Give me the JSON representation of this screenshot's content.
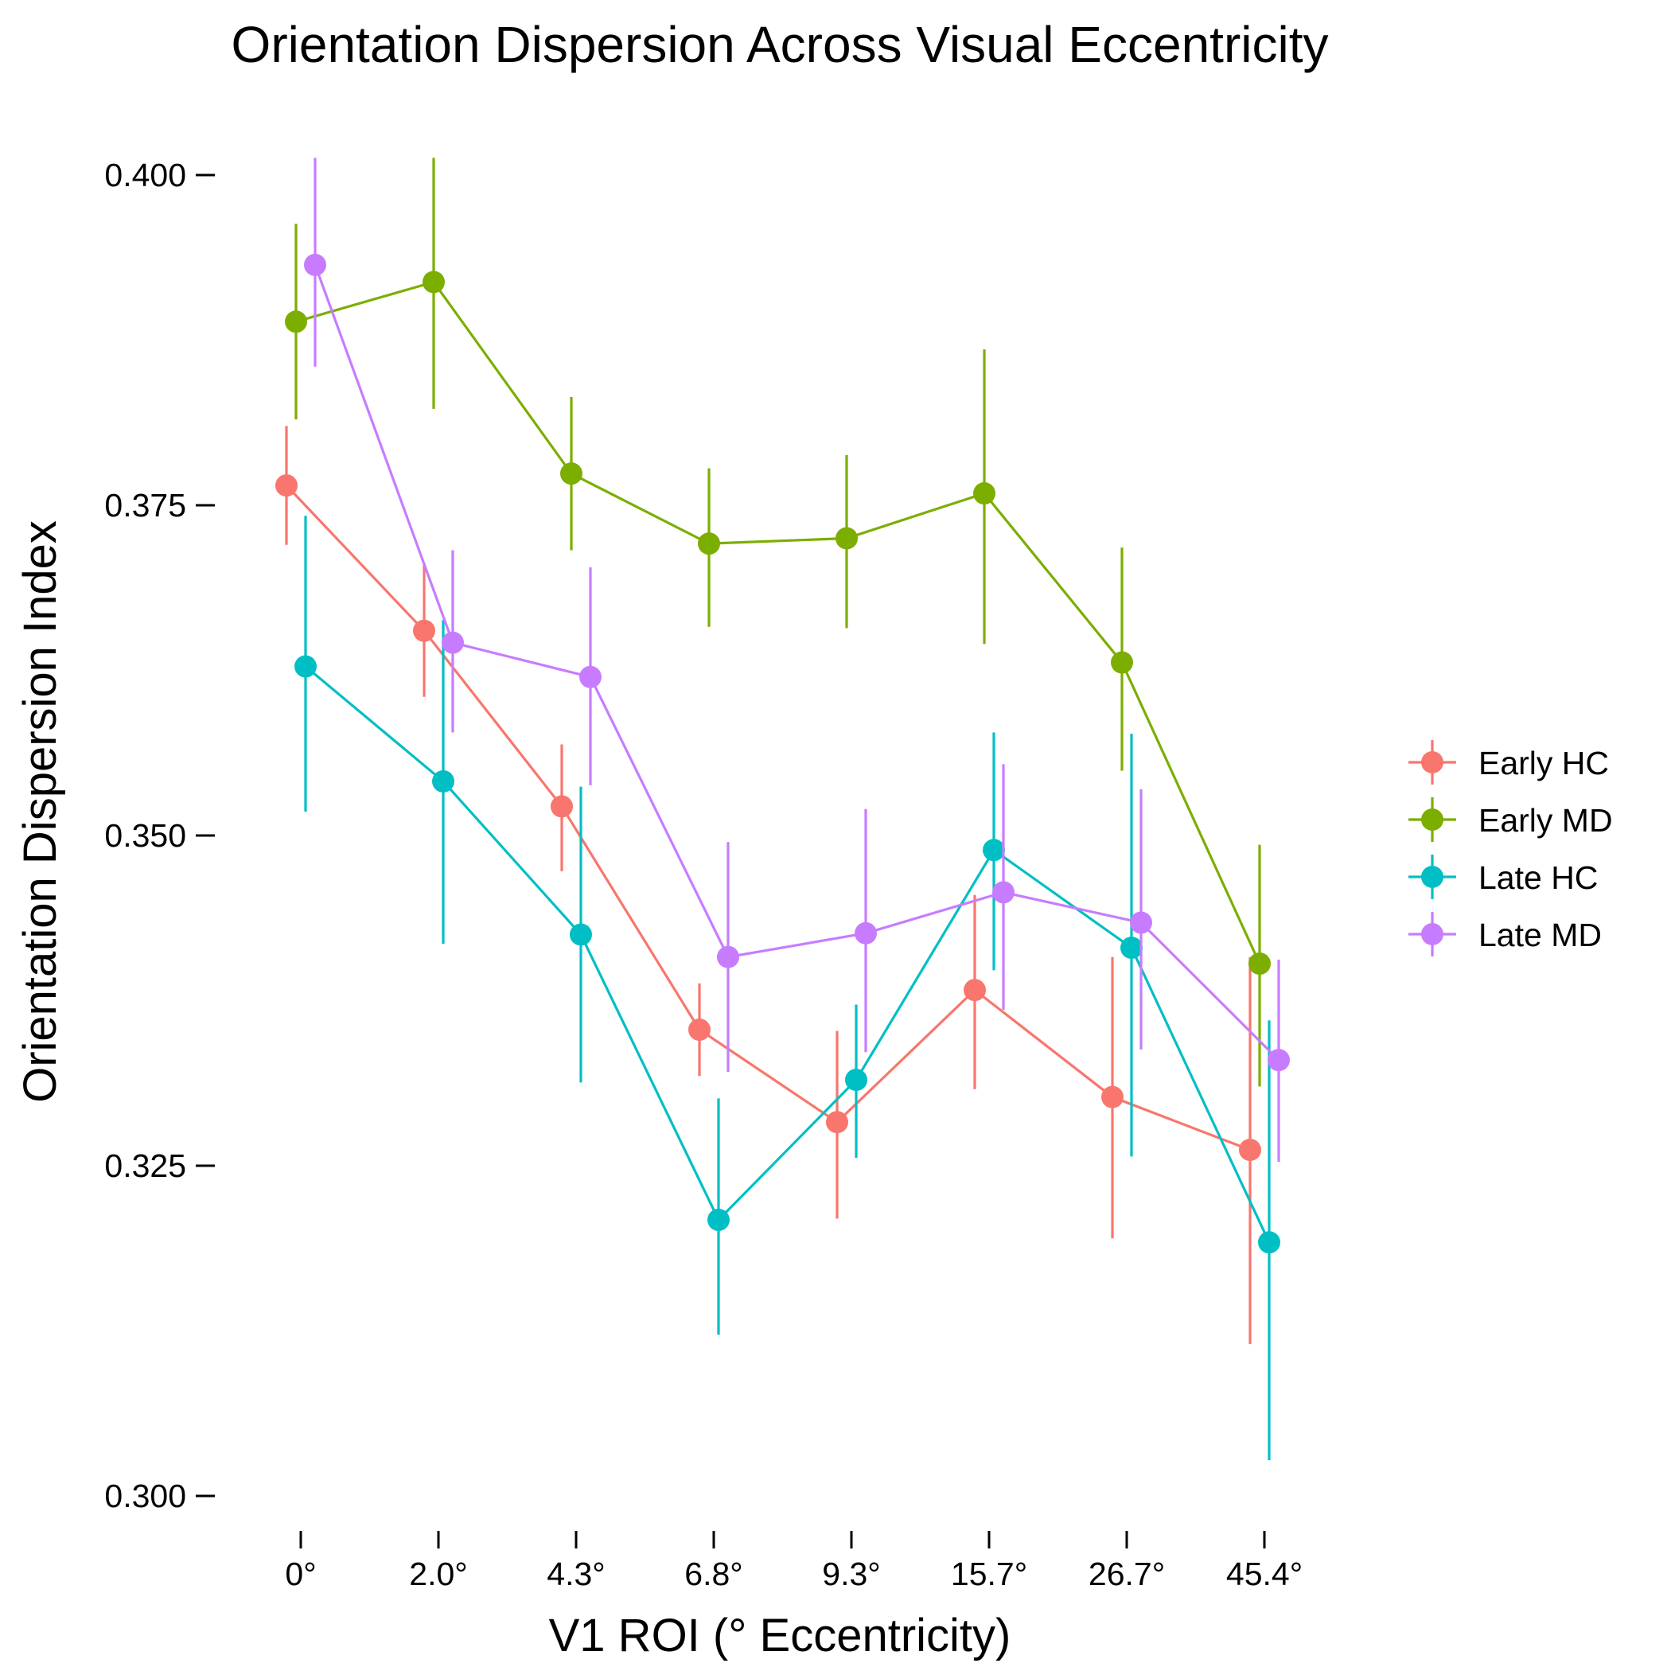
{
  "chart_data": {
    "type": "line",
    "title": "Orientation Dispersion Across Visual Eccentricity",
    "xlabel": "V1 ROI (° Eccentricity)",
    "ylabel": "Orientation Dispersion Index",
    "categories": [
      "0°",
      "2.0°",
      "4.3°",
      "6.8°",
      "9.3°",
      "15.7°",
      "26.7°",
      "45.4°"
    ],
    "yticks": [
      "0.300",
      "0.325",
      "0.350",
      "0.375",
      "0.400"
    ],
    "ylim": [
      0.3,
      0.4
    ],
    "grid": false,
    "legend_position": "right",
    "error_bars": true,
    "series": [
      {
        "name": "Early HC",
        "color": "#F8766D",
        "values": [
          0.3765,
          0.3655,
          0.3522,
          0.3353,
          0.3283,
          0.3383,
          0.3302,
          0.3262
        ],
        "err_low": [
          0.372,
          0.3605,
          0.3473,
          0.3318,
          0.321,
          0.3308,
          0.3195,
          0.3115
        ],
        "err_high": [
          0.381,
          0.3705,
          0.3569,
          0.3388,
          0.3352,
          0.3455,
          0.3408,
          0.3408
        ]
      },
      {
        "name": "Early MD",
        "color": "#7CAE00",
        "values": [
          0.3889,
          0.3919,
          0.3774,
          0.3721,
          0.3725,
          0.3759,
          0.3631,
          0.3403
        ],
        "err_low": [
          0.3815,
          0.3823,
          0.3716,
          0.3658,
          0.3657,
          0.3645,
          0.3549,
          0.331
        ],
        "err_high": [
          0.3963,
          0.4013,
          0.3832,
          0.3778,
          0.3788,
          0.3868,
          0.3718,
          0.3493
        ]
      },
      {
        "name": "Late HC",
        "color": "#00BFC4",
        "values": [
          0.3628,
          0.3541,
          0.3425,
          0.3209,
          0.3315,
          0.3489,
          0.3415,
          0.3192
        ],
        "err_low": [
          0.3518,
          0.3418,
          0.3313,
          0.3122,
          0.3256,
          0.3398,
          0.3257,
          0.3027
        ],
        "err_high": [
          0.3742,
          0.3663,
          0.3537,
          0.3301,
          0.3372,
          0.3578,
          0.3577,
          0.336
        ]
      },
      {
        "name": "Late MD",
        "color": "#C77CFF",
        "values": [
          0.3932,
          0.3646,
          0.362,
          0.3408,
          0.3426,
          0.3457,
          0.3434,
          0.333
        ],
        "err_low": [
          0.3855,
          0.3578,
          0.3538,
          0.3321,
          0.3336,
          0.3368,
          0.3338,
          0.3253
        ],
        "err_high": [
          0.4013,
          0.3716,
          0.3703,
          0.3495,
          0.352,
          0.3554,
          0.3535,
          0.3406
        ]
      }
    ]
  }
}
